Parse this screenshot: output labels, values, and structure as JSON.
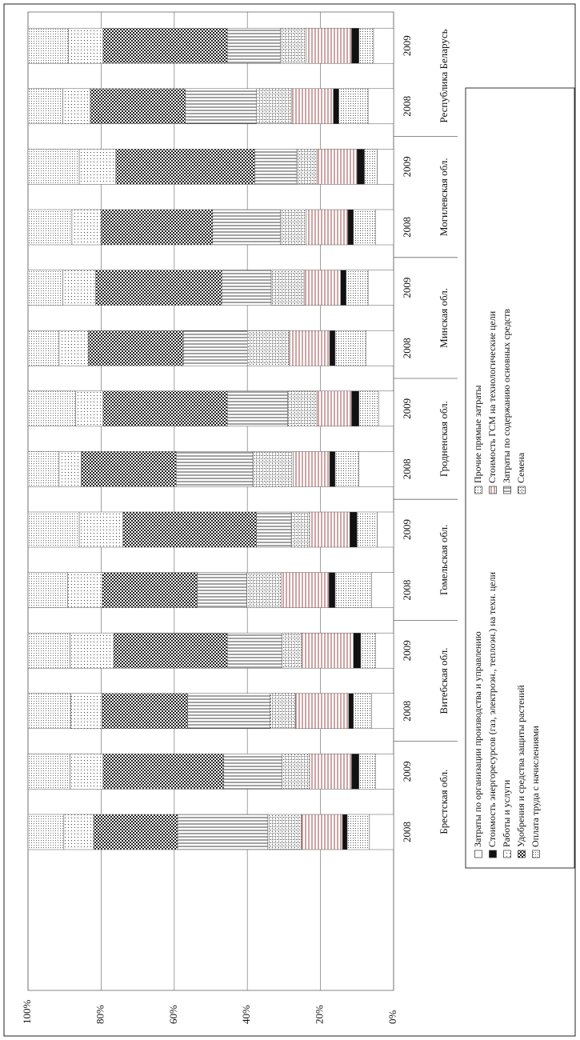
{
  "chart_data": {
    "type": "stacked_bar",
    "categories": [
      "2008",
      "2009",
      "2008",
      "2009",
      "2008",
      "2009",
      "2008",
      "2009",
      "2008",
      "2009",
      "2008",
      "2009",
      "2008",
      "2009"
    ],
    "groups": [
      "Брестская обл.",
      "Витебская обл.",
      "Гомельская обл.",
      "Гродненская обл.",
      "Минская обл.",
      "Могилевская обл.",
      "Республика Беларусь"
    ],
    "ylim": [
      0,
      100
    ],
    "yticks": [
      {
        "value": 0,
        "label": "0%"
      },
      {
        "value": 20,
        "label": "20%"
      },
      {
        "value": 40,
        "label": "40%"
      },
      {
        "value": 60,
        "label": "60%"
      },
      {
        "value": 80,
        "label": "80%"
      },
      {
        "value": 100,
        "label": "100%"
      }
    ],
    "grid": true,
    "series": [
      {
        "name": "Затраты по организации производства и управлению",
        "color": "#ffffff",
        "values": [
          6.6,
          5,
          6,
          5,
          6,
          4.5,
          9.5,
          4,
          7.5,
          7,
          5,
          4.5,
          7,
          5.5
        ]
      },
      {
        "name": "Прочие прямые затраты",
        "color": "#555555",
        "values": [
          6.1,
          4.5,
          5,
          4,
          10,
          5.5,
          6.5,
          5.5,
          8.5,
          6,
          6,
          3.5,
          8,
          4
        ]
      },
      {
        "name": "Стоимость энергоресурсов (газ, электроэн., теплоэн.) на техн. цели",
        "color": "#111111",
        "values": [
          1.3,
          2,
          1.3,
          2,
          1.7,
          2,
          1.5,
          2,
          1.5,
          1.5,
          1.5,
          2,
          1.5,
          2
        ]
      },
      {
        "name": "Стоимость ГСМ  на технологические цели",
        "color": "#a04848",
        "values": [
          11.2,
          11.5,
          14.5,
          14,
          13,
          11,
          10,
          9.5,
          11,
          10,
          11.5,
          11,
          11.5,
          12.5
        ]
      },
      {
        "name": "Семена",
        "color": "#444444",
        "values": [
          9.2,
          7.5,
          7,
          5.5,
          9.5,
          5,
          11,
          8,
          11.5,
          9,
          7,
          5.5,
          9.5,
          7
        ]
      },
      {
        "name": "Затраты по содержанию основных средств",
        "color": "#444444",
        "values": [
          24.7,
          16,
          22.5,
          15,
          13.5,
          9.5,
          21,
          16.5,
          17.5,
          13.5,
          18.5,
          11.5,
          19.5,
          14.5
        ]
      },
      {
        "name": "Удобрения и средства защиты растений",
        "color": "#222222",
        "values": [
          23,
          33,
          23.5,
          31,
          26,
          36.5,
          26,
          34,
          26,
          34.5,
          30.5,
          38,
          26,
          34
        ]
      },
      {
        "name": "Работы и услуги",
        "color": "#444444",
        "values": [
          8.1,
          9,
          8.5,
          12,
          9.5,
          12,
          6,
          7.5,
          8,
          9,
          8,
          10,
          7.5,
          9.5
        ]
      },
      {
        "name": "Оплата труда с начислениями",
        "color": "#666666",
        "values": [
          9.8,
          11.5,
          11.7,
          11.5,
          10.8,
          14,
          8.5,
          13,
          8.5,
          9.5,
          12,
          14,
          9.5,
          11
        ]
      }
    ]
  }
}
